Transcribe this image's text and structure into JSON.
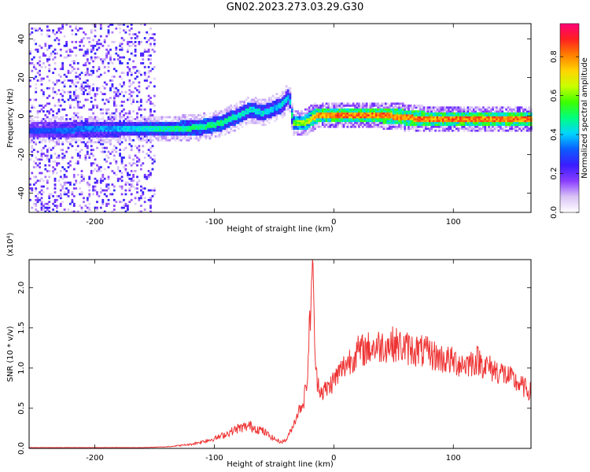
{
  "title": "GN02.2023.273.03.29.G30",
  "chart_data": [
    {
      "type": "heatmap",
      "xlabel": "Height of straight line (km)",
      "ylabel": "Frequency (Hz)",
      "xlim": [
        -255,
        165
      ],
      "ylim": [
        -50,
        48
      ],
      "xticks": [
        -200,
        -100,
        0,
        100
      ],
      "yticks": [
        -40,
        -20,
        0,
        20,
        40
      ],
      "colorbar": {
        "label": "Normalized spectral amplitude",
        "range": [
          0,
          0.97
        ],
        "ticks": [
          0.0,
          0.2,
          0.4,
          0.6,
          0.8
        ],
        "colors": [
          "#ffffff",
          "#d9c3f5",
          "#8a3dff",
          "#3a1cff",
          "#0c5bff",
          "#00d4ff",
          "#00ff80",
          "#3cff00",
          "#c8ff00",
          "#ffd400",
          "#ff8000",
          "#ff2020",
          "#ff0078"
        ]
      },
      "ridge": [
        {
          "x": -255,
          "f": -8,
          "a": 0.3
        },
        {
          "x": -180,
          "f": -7,
          "a": 0.4
        },
        {
          "x": -160,
          "f": -7,
          "a": 0.45
        },
        {
          "x": -130,
          "f": -7,
          "a": 0.5
        },
        {
          "x": -110,
          "f": -6,
          "a": 0.5
        },
        {
          "x": -95,
          "f": -4,
          "a": 0.5
        },
        {
          "x": -80,
          "f": 0,
          "a": 0.45
        },
        {
          "x": -70,
          "f": 3,
          "a": 0.45
        },
        {
          "x": -60,
          "f": 1,
          "a": 0.45
        },
        {
          "x": -50,
          "f": 4,
          "a": 0.4
        },
        {
          "x": -45,
          "f": 5,
          "a": 0.45
        },
        {
          "x": -38,
          "f": 10,
          "a": 0.4
        },
        {
          "x": -35,
          "f": -4,
          "a": 0.6
        },
        {
          "x": -25,
          "f": -4,
          "a": 0.65
        },
        {
          "x": -15,
          "f": 0,
          "a": 0.8
        },
        {
          "x": 0,
          "f": 0,
          "a": 0.85
        },
        {
          "x": 40,
          "f": 0,
          "a": 0.85
        },
        {
          "x": 75,
          "f": -2,
          "a": 0.85
        },
        {
          "x": 120,
          "f": -2,
          "a": 0.85
        },
        {
          "x": 165,
          "f": -2,
          "a": 0.85
        }
      ]
    },
    {
      "type": "line",
      "xlabel": "Height of straight line (km)",
      "ylabel": "SNR (10 * v/v)",
      "multiplier": "(x10⁴)",
      "xlim": [
        -255,
        165
      ],
      "ylim": [
        0,
        2.35
      ],
      "xticks": [
        -200,
        -100,
        0,
        100
      ],
      "yticks": [
        0.0,
        0.5,
        1.0,
        1.5,
        2.0
      ],
      "series": [
        {
          "color": "#ee3333",
          "x": [
            -255,
            -220,
            -190,
            -160,
            -140,
            -120,
            -100,
            -90,
            -80,
            -70,
            -60,
            -50,
            -45,
            -40,
            -35,
            -30,
            -25,
            -22,
            -20,
            -18,
            -15,
            -10,
            -5,
            0,
            10,
            20,
            30,
            40,
            50,
            60,
            70,
            80,
            90,
            100,
            110,
            120,
            130,
            140,
            150,
            160,
            165
          ],
          "y": [
            0.01,
            0.01,
            0.01,
            0.01,
            0.02,
            0.05,
            0.12,
            0.18,
            0.25,
            0.28,
            0.22,
            0.12,
            0.08,
            0.1,
            0.25,
            0.45,
            0.6,
            0.9,
            1.6,
            2.35,
            0.9,
            0.7,
            0.75,
            0.85,
            1.05,
            1.2,
            1.25,
            1.28,
            1.3,
            1.25,
            1.22,
            1.18,
            1.12,
            1.08,
            1.05,
            1.1,
            1.0,
            0.95,
            0.85,
            0.75,
            0.7
          ]
        }
      ]
    }
  ]
}
